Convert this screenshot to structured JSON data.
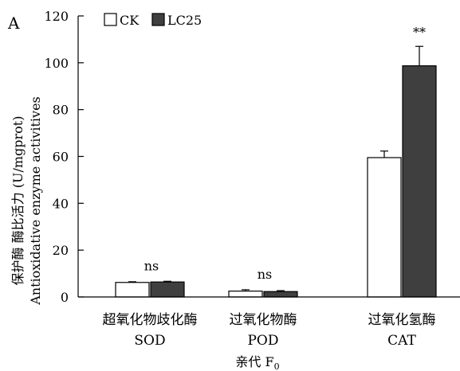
{
  "panel_label": "A",
  "chart_data": {
    "type": "bar",
    "categories": [
      {
        "cn": "超氧化物歧化酶",
        "en": "SOD"
      },
      {
        "cn": "过氧化物酶",
        "en": "POD"
      },
      {
        "cn": "过氧化氢酶",
        "en": "CAT"
      }
    ],
    "series": [
      {
        "name": "CK",
        "values": [
          6.2,
          2.5,
          59.5
        ],
        "errors": [
          0.3,
          0.6,
          2.8
        ],
        "fill": "#ffffff"
      },
      {
        "name": "LC25",
        "values": [
          6.4,
          2.3,
          98.7
        ],
        "errors": [
          0.3,
          0.4,
          8.3
        ],
        "fill": "#3f3f3f"
      }
    ],
    "significance": [
      "ns",
      "ns",
      "**"
    ],
    "ylabel_cn": "保护酶 酶比活力 (U/mgprot)",
    "ylabel_en": "Antioxidative enzyme activitives",
    "xlabel_main": "亲代 F",
    "xlabel_sub": "0",
    "ylim": [
      0,
      120
    ],
    "yticks": [
      0,
      20,
      40,
      60,
      80,
      100,
      120
    ],
    "legend_position": "top-left",
    "grid": false
  }
}
